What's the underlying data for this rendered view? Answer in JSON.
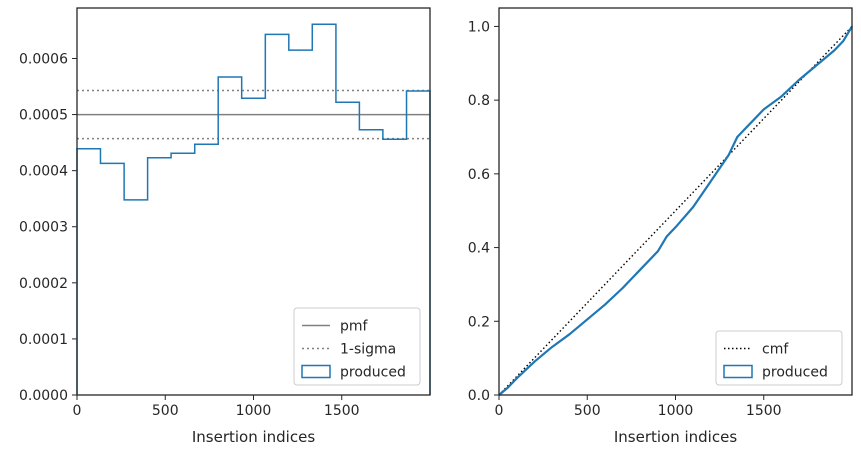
{
  "chart_data": [
    {
      "type": "histogram",
      "xlabel": "Insertion indices",
      "ylabel": "",
      "xlim": [
        0,
        2000
      ],
      "ylim": [
        0,
        0.00069
      ],
      "xticks": [
        0,
        500,
        1000,
        1500
      ],
      "yticks": [
        0.0,
        0.0001,
        0.0002,
        0.0003,
        0.0004,
        0.0005,
        0.0006
      ],
      "ytick_labels": [
        "0.0000",
        "0.0001",
        "0.0002",
        "0.0003",
        "0.0004",
        "0.0005",
        "0.0006"
      ],
      "grid": false,
      "legend": {
        "placement": "bottom-right",
        "entries": [
          "pmf",
          "1-sigma",
          "produced"
        ]
      },
      "pmf": {
        "name": "pmf",
        "value": 0.0005,
        "color": "#808080"
      },
      "sigma": {
        "name": "1-sigma",
        "values": [
          0.000457,
          0.000543
        ],
        "color": "#808080"
      },
      "produced": {
        "name": "produced",
        "color": "#1f77b4",
        "bin_edges": [
          0,
          133,
          267,
          400,
          533,
          667,
          800,
          933,
          1067,
          1200,
          1333,
          1467,
          1600,
          1733,
          1867,
          2000
        ],
        "values": [
          0.000439,
          0.000413,
          0.000348,
          0.000423,
          0.000431,
          0.000447,
          0.000567,
          0.000529,
          0.000643,
          0.000615,
          0.000661,
          0.000522,
          0.000473,
          0.000456,
          0.000542
        ]
      }
    },
    {
      "type": "line",
      "xlabel": "Insertion indices",
      "ylabel": "",
      "xlim": [
        0,
        2000
      ],
      "ylim": [
        0,
        1.05
      ],
      "xticks": [
        0,
        500,
        1000,
        1500
      ],
      "yticks": [
        0.0,
        0.2,
        0.4,
        0.6,
        0.8,
        1.0
      ],
      "ytick_labels": [
        "0.0",
        "0.2",
        "0.4",
        "0.6",
        "0.8",
        "1.0"
      ],
      "grid": false,
      "legend": {
        "placement": "bottom-right",
        "entries": [
          "cmf",
          "produced"
        ]
      },
      "cmf": {
        "name": "cmf",
        "color": "#000000",
        "x": [
          0,
          2000
        ],
        "y": [
          0,
          1
        ]
      },
      "produced": {
        "name": "produced",
        "color": "#1f77b4",
        "x": [
          0,
          50,
          100,
          200,
          300,
          400,
          500,
          600,
          700,
          800,
          900,
          950,
          1000,
          1100,
          1200,
          1300,
          1350,
          1400,
          1500,
          1600,
          1700,
          1800,
          1900,
          1950,
          2000
        ],
        "y": [
          0,
          0.02,
          0.045,
          0.09,
          0.13,
          0.165,
          0.205,
          0.245,
          0.29,
          0.34,
          0.39,
          0.43,
          0.455,
          0.51,
          0.58,
          0.65,
          0.7,
          0.725,
          0.775,
          0.81,
          0.855,
          0.895,
          0.935,
          0.96,
          1.0
        ]
      }
    }
  ]
}
